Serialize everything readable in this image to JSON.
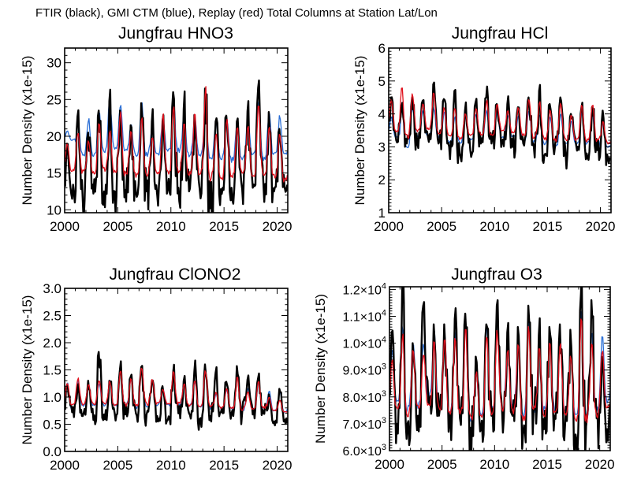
{
  "figure": {
    "title": "FTIR (black), GMI CTM (blue), Replay (red) Total Columns at Station Lat/Lon"
  },
  "legend": [
    {
      "name": "FTIR",
      "color_name": "black",
      "color": "#000000"
    },
    {
      "name": "GMI CTM",
      "color_name": "blue",
      "color": "#2b6fd6"
    },
    {
      "name": "Replay",
      "color_name": "red",
      "color": "#e0101c"
    }
  ],
  "chart_data": [
    {
      "id": "hno3",
      "type": "line",
      "title": "Jungfrau  HNO3",
      "xlabel": "",
      "ylabel": "Number Density (x1e-15)",
      "xlim": [
        2000,
        2021
      ],
      "ylim": [
        9.6,
        32
      ],
      "xticks": [
        2000,
        2005,
        2010,
        2015,
        2020
      ],
      "xtick_labels": [
        "2000",
        "2005",
        "2010",
        "2015",
        "2020"
      ],
      "yticks": [
        10,
        15,
        20,
        25,
        30
      ],
      "ytick_labels": [
        "10",
        "15",
        "20",
        "25",
        "30"
      ],
      "yminor_step": 1,
      "grid": false,
      "years": [
        2000,
        2001,
        2002,
        2003,
        2004,
        2005,
        2006,
        2007,
        2008,
        2009,
        2010,
        2011,
        2012,
        2013,
        2014,
        2015,
        2016,
        2017,
        2018,
        2019,
        2020
      ],
      "series": [
        {
          "name": "FTIR",
          "annual_max": [
            19,
            22.7,
            20.5,
            23.5,
            24.8,
            23.5,
            21.5,
            24.5,
            22,
            22,
            26,
            23.7,
            22.9,
            26.5,
            22,
            22.8,
            22,
            23.4,
            26.6,
            23.3,
            21
          ],
          "annual_min": [
            11.5,
            11.2,
            12.2,
            12.5,
            12.5,
            12.7,
            12.3,
            12.5,
            12,
            12.8,
            13,
            12.5,
            12.8,
            10.2,
            12.8,
            13,
            12.8,
            13,
            13.5,
            12.5,
            13
          ]
        },
        {
          "name": "GMI CTM",
          "annual_max": [
            20.7,
            22.4,
            22.3,
            23.3,
            25,
            24.4,
            21.5,
            24.6,
            21.5,
            22.5,
            24.5,
            23.5,
            22.7,
            24,
            22.4,
            22.8,
            22.2,
            22.5,
            24.6,
            23,
            22.7
          ],
          "annual_min": [
            19.5,
            17.5,
            17.5,
            18,
            18.5,
            18,
            17.5,
            17.5,
            17.5,
            18,
            18,
            17.5,
            17.5,
            17,
            17,
            16.8,
            17,
            17.5,
            17,
            17.5,
            17.5
          ]
        },
        {
          "name": "Replay",
          "annual_max": [
            19,
            20.5,
            19.5,
            21.7,
            21,
            23.3,
            21,
            22.5,
            20,
            23.2,
            23.9,
            21.7,
            22.9,
            26.5,
            20.5,
            22.5,
            21.5,
            21.5,
            24.5,
            21.5,
            20.5
          ],
          "annual_min": [
            15.3,
            15.2,
            15,
            15.5,
            15,
            14.8,
            14.7,
            14.8,
            15,
            14.8,
            15.5,
            15,
            15,
            14.5,
            14.3,
            14.5,
            15,
            14.8,
            14.5,
            14.5,
            14
          ]
        }
      ]
    },
    {
      "id": "hcl",
      "type": "line",
      "title": "Jungfrau  HCl",
      "xlabel": "",
      "ylabel": "Number Density (x1e-15)",
      "xlim": [
        2000,
        2021
      ],
      "ylim": [
        1,
        6
      ],
      "xticks": [
        2000,
        2005,
        2010,
        2015,
        2020
      ],
      "xtick_labels": [
        "2000",
        "2005",
        "2010",
        "2015",
        "2020"
      ],
      "yticks": [
        1,
        2,
        3,
        4,
        5,
        6
      ],
      "ytick_labels": [
        "1",
        "2",
        "3",
        "4",
        "5",
        "6"
      ],
      "yminor_step": 0.1,
      "grid": false,
      "years": [
        2000,
        2001,
        2002,
        2003,
        2004,
        2005,
        2006,
        2007,
        2008,
        2009,
        2010,
        2011,
        2012,
        2013,
        2014,
        2015,
        2016,
        2017,
        2018,
        2019,
        2020
      ],
      "series": [
        {
          "name": "FTIR",
          "annual_max": [
            4.5,
            4.2,
            4.5,
            4.4,
            4.9,
            4.45,
            4.7,
            4.1,
            4.35,
            4.5,
            4.3,
            4.3,
            4.2,
            4.5,
            4.7,
            4.3,
            4.5,
            4.0,
            4.2,
            4.2,
            4.1
          ],
          "annual_min": [
            3.2,
            3.1,
            3.1,
            3.3,
            3.1,
            3.0,
            2.8,
            2.9,
            3.1,
            3.1,
            3.2,
            3.0,
            3.1,
            3.0,
            2.75,
            3.0,
            2.8,
            3.05,
            2.8,
            2.9,
            2.65
          ]
        },
        {
          "name": "GMI CTM",
          "annual_max": [
            3.9,
            4.15,
            4.2,
            4.1,
            4.2,
            4.05,
            3.9,
            3.9,
            4.0,
            4.1,
            4.1,
            4.0,
            3.95,
            4.15,
            3.95,
            3.95,
            4.0,
            3.8,
            4.05,
            3.95,
            3.7
          ],
          "annual_min": [
            3.3,
            3.0,
            3.35,
            3.35,
            3.3,
            3.15,
            3.15,
            3.2,
            3.25,
            3.25,
            3.3,
            3.3,
            3.2,
            3.15,
            3.1,
            3.0,
            3.1,
            3.1,
            3.1,
            3.05,
            3.0
          ]
        },
        {
          "name": "Replay",
          "annual_max": [
            4.45,
            4.8,
            4.6,
            4.35,
            4.7,
            4.2,
            4.2,
            4.0,
            4.2,
            4.4,
            4.3,
            4.1,
            4.2,
            4.5,
            4.4,
            4.1,
            4.35,
            4.0,
            4.25,
            4.3,
            3.8
          ],
          "annual_min": [
            3.5,
            3.3,
            3.5,
            3.55,
            3.45,
            3.35,
            3.25,
            3.35,
            3.4,
            3.35,
            3.5,
            3.45,
            3.35,
            3.3,
            3.25,
            3.2,
            3.2,
            3.2,
            3.2,
            3.2,
            3.1
          ]
        }
      ]
    },
    {
      "id": "clono2",
      "type": "line",
      "title": "Jungfrau  ClONO2",
      "xlabel": "",
      "ylabel": "Number Density (x1e-15)",
      "xlim": [
        2000,
        2021
      ],
      "ylim": [
        0,
        3
      ],
      "xticks": [
        2000,
        2005,
        2010,
        2015,
        2020
      ],
      "xtick_labels": [
        "2000",
        "2005",
        "2010",
        "2015",
        "2020"
      ],
      "yticks": [
        0,
        0.5,
        1.0,
        1.5,
        2.0,
        2.5,
        3.0
      ],
      "ytick_labels": [
        "0.0",
        "0.5",
        "1.0",
        "1.5",
        "2.0",
        "2.5",
        "3.0"
      ],
      "yminor_step": 0.1,
      "grid": false,
      "years": [
        2000,
        2001,
        2002,
        2003,
        2004,
        2005,
        2006,
        2007,
        2008,
        2009,
        2010,
        2011,
        2012,
        2013,
        2014,
        2015,
        2016,
        2017,
        2018,
        2019,
        2020
      ],
      "series": [
        {
          "name": "FTIR",
          "annual_max": [
            1.2,
            1.15,
            1.3,
            1.83,
            1.3,
            1.52,
            1.37,
            1.55,
            1.3,
            1.2,
            1.45,
            1.3,
            1.47,
            1.6,
            1.45,
            1.28,
            1.57,
            1.32,
            1.35,
            1.05,
            1.15
          ],
          "annual_min": [
            0.72,
            0.65,
            0.58,
            0.68,
            0.7,
            0.68,
            0.7,
            0.68,
            0.65,
            0.58,
            0.7,
            0.7,
            0.6,
            0.65,
            0.72,
            0.7,
            0.72,
            0.68,
            0.7,
            0.55,
            0.58
          ]
        },
        {
          "name": "GMI CTM",
          "annual_max": [
            1.25,
            1.3,
            1.25,
            1.25,
            1.3,
            1.5,
            1.35,
            1.55,
            1.3,
            1.15,
            1.45,
            1.25,
            1.3,
            1.55,
            1.05,
            1.15,
            1.4,
            1.15,
            1.3,
            1.1,
            1.1
          ],
          "annual_min": [
            0.78,
            0.85,
            0.85,
            0.85,
            0.85,
            0.85,
            0.82,
            0.85,
            0.85,
            0.85,
            0.85,
            0.85,
            0.82,
            0.82,
            0.8,
            0.78,
            0.78,
            0.78,
            0.78,
            0.75,
            0.72
          ]
        },
        {
          "name": "Replay",
          "annual_max": [
            1.27,
            1.35,
            1.25,
            1.3,
            1.3,
            1.5,
            1.35,
            1.57,
            1.35,
            1.15,
            1.48,
            1.25,
            1.3,
            1.5,
            1.08,
            1.15,
            1.35,
            1.1,
            1.3,
            1.0,
            0.95
          ],
          "annual_min": [
            0.85,
            0.88,
            0.88,
            0.88,
            0.85,
            0.85,
            0.85,
            0.88,
            0.88,
            0.88,
            0.88,
            0.85,
            0.82,
            0.82,
            0.8,
            0.8,
            0.78,
            0.78,
            0.8,
            0.75,
            0.72
          ]
        }
      ]
    },
    {
      "id": "o3",
      "type": "line",
      "title": "Jungfrau  O3",
      "xlabel": "",
      "ylabel": "Number Density (x1e-15)",
      "xlim": [
        2000,
        2021
      ],
      "ylim": [
        6000,
        12100
      ],
      "xticks": [
        2000,
        2005,
        2010,
        2015,
        2020
      ],
      "xtick_labels": [
        "2000",
        "2005",
        "2010",
        "2015",
        "2020"
      ],
      "yticks": [
        6000,
        7000,
        8000,
        9000,
        10000,
        11000,
        12000
      ],
      "ytick_labels": [
        {
          "mantissa": "6.0",
          "exponent": "3"
        },
        {
          "mantissa": "7.0",
          "exponent": "3"
        },
        {
          "mantissa": "8.0",
          "exponent": "3"
        },
        {
          "mantissa": "9.0",
          "exponent": "3"
        },
        {
          "mantissa": "1.0",
          "exponent": "4"
        },
        {
          "mantissa": "1.1",
          "exponent": "4"
        },
        {
          "mantissa": "1.2",
          "exponent": "4"
        }
      ],
      "yminor_step": 100,
      "grid": false,
      "years": [
        2000,
        2001,
        2002,
        2003,
        2004,
        2005,
        2006,
        2007,
        2008,
        2009,
        2010,
        2011,
        2012,
        2013,
        2014,
        2015,
        2016,
        2017,
        2018,
        2019,
        2020
      ],
      "series": [
        {
          "name": "FTIR",
          "annual_max": [
            10400,
            12000,
            10000,
            11400,
            10700,
            10700,
            10900,
            11100,
            9500,
            10700,
            11400,
            10400,
            10600,
            11400,
            10300,
            10600,
            10700,
            10500,
            11800,
            11600,
            9500
          ],
          "annual_min": [
            7000,
            7000,
            7300,
            7800,
            7300,
            7100,
            7200,
            6850,
            6800,
            7300,
            7500,
            7300,
            6600,
            7500,
            6800,
            7300,
            7000,
            6600,
            6900,
            7200,
            6800
          ]
        },
        {
          "name": "GMI CTM",
          "annual_max": [
            9700,
            10700,
            10100,
            10000,
            10500,
            10300,
            10500,
            10700,
            9000,
            10700,
            11000,
            10000,
            10400,
            10900,
            10200,
            10300,
            10300,
            9800,
            11300,
            10300,
            10300
          ],
          "annual_min": [
            7900,
            7500,
            7700,
            8100,
            7700,
            7500,
            7600,
            7200,
            7400,
            7500,
            7700,
            7700,
            7300,
            7600,
            7500,
            7600,
            7600,
            7300,
            7300,
            7500,
            7800
          ]
        },
        {
          "name": "Replay",
          "annual_max": [
            9500,
            10300,
            9800,
            9700,
            10000,
            10100,
            10200,
            10500,
            8900,
            10300,
            10500,
            9800,
            10100,
            10600,
            9800,
            10000,
            10000,
            9600,
            10900,
            10000,
            9800
          ],
          "annual_min": [
            7600,
            7400,
            7600,
            7700,
            7600,
            7500,
            7400,
            7200,
            7300,
            7400,
            7600,
            7500,
            7200,
            7500,
            7400,
            7400,
            7400,
            7200,
            7200,
            7300,
            7600
          ]
        }
      ]
    }
  ]
}
